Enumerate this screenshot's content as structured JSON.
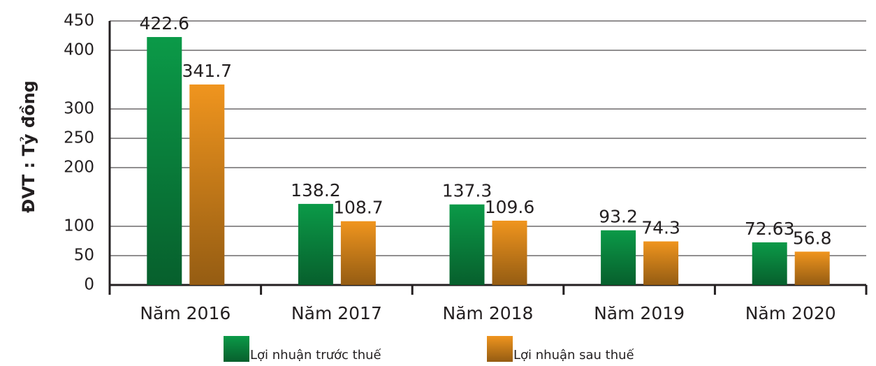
{
  "chart_data": {
    "type": "bar",
    "y_axis_label": "ĐVT : Tỷ đồng",
    "categories": [
      "Năm 2016",
      "Năm 2017",
      "Năm 2018",
      "Năm 2019",
      "Năm 2020"
    ],
    "series": [
      {
        "name": "Lợi nhuận trước thuế",
        "color": "#0b9a48",
        "values": [
          422.6,
          138.2,
          137.3,
          93.2,
          72.63
        ]
      },
      {
        "name": "Lợi nhuận sau thuế",
        "color": "#f0951e",
        "values": [
          341.7,
          108.7,
          109.6,
          74.3,
          56.8
        ]
      }
    ],
    "ylim": [
      0,
      450
    ],
    "yticks": [
      0,
      50,
      100,
      200,
      250,
      300,
      400,
      450
    ],
    "grid": true
  }
}
